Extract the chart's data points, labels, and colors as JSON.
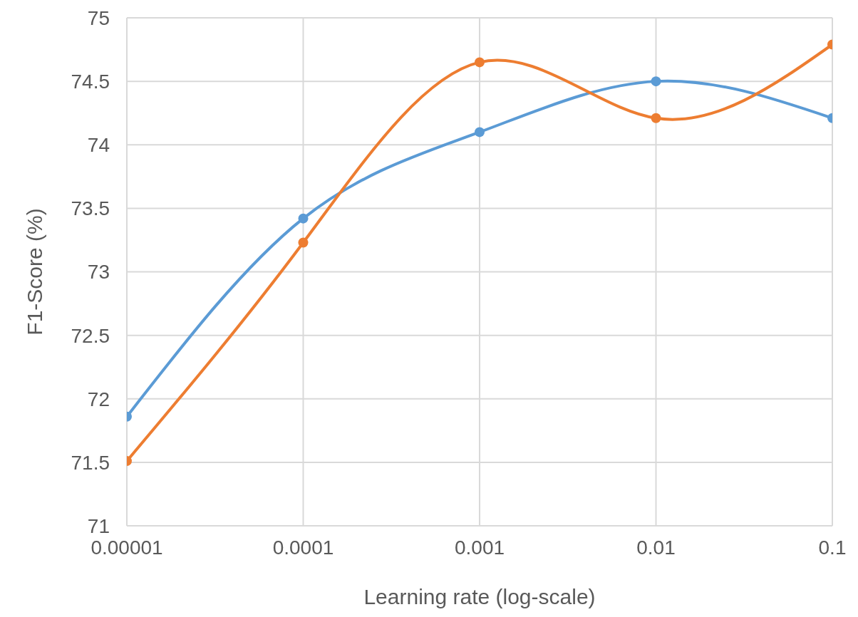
{
  "chart_data": {
    "type": "line",
    "xlabel": "Learning rate (log-scale)",
    "ylabel": "F1-Score (%)",
    "x": [
      1e-05,
      0.0001,
      0.001,
      0.01,
      0.1
    ],
    "series": [
      {
        "color": "#5b9bd5",
        "values": [
          71.86,
          73.42,
          74.1,
          74.5,
          74.21
        ]
      },
      {
        "color": "#ed7d31",
        "values": [
          71.51,
          73.23,
          74.65,
          74.21,
          74.79
        ]
      }
    ],
    "log": "x",
    "xlim": [
      1e-05,
      0.1
    ],
    "xticks": [
      {
        "value": 1e-05,
        "label": "0.00001"
      },
      0.0001,
      0.001,
      0.01,
      0.1
    ],
    "ylim": [
      71,
      75
    ],
    "yticks": [
      71,
      71.5,
      72,
      72.5,
      73,
      73.5,
      74,
      74.5,
      75
    ],
    "grid": true,
    "legend": false,
    "marker": "circle",
    "line_style": "solid"
  }
}
